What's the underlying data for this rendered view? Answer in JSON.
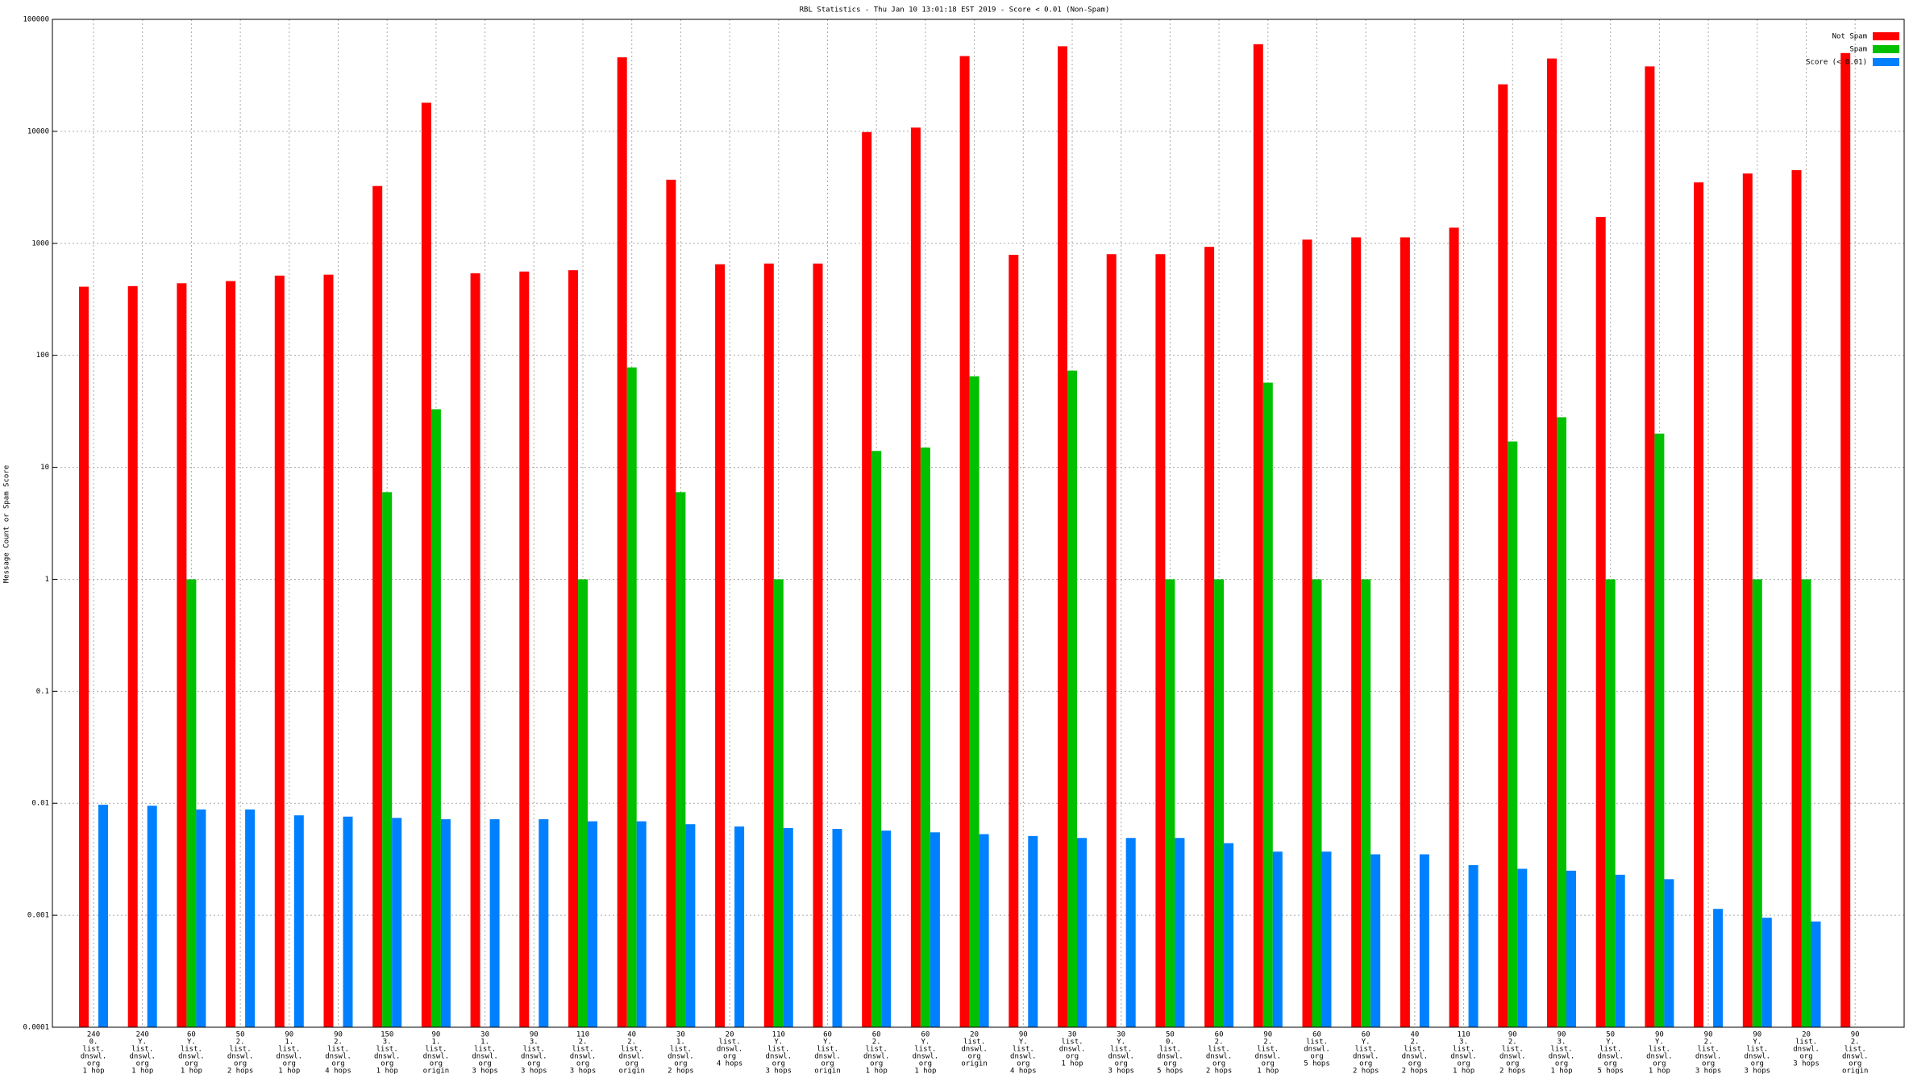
{
  "chart_data": {
    "type": "bar",
    "log_scale": true,
    "grid": true,
    "legend_position": "top-right",
    "title": "RBL Statistics - Thu Jan 10 13:01:18 EST 2019 - Score < 0.01 (Non-Spam)",
    "y_label": "Message Count or Spam Score",
    "ylim": [
      0.0001,
      100000
    ],
    "yticks": [
      0.0001,
      0.001,
      0.01,
      0.1,
      1,
      10,
      100,
      1000,
      10000,
      100000
    ],
    "categories": [
      [
        "240",
        "0.",
        "list.",
        "dnswl.",
        "org",
        "1 hop"
      ],
      [
        "240",
        "Y.",
        "list.",
        "dnswl.",
        "org",
        "1 hop"
      ],
      [
        "60",
        "Y.",
        "list.",
        "dnswl.",
        "org",
        "1 hop"
      ],
      [
        "50",
        "2.",
        "list.",
        "dnswl.",
        "org",
        "2 hops"
      ],
      [
        "90",
        "1.",
        "list.",
        "dnswl.",
        "org",
        "1 hop"
      ],
      [
        "90",
        "2.",
        "list.",
        "dnswl.",
        "org",
        "4 hops"
      ],
      [
        "150",
        "3.",
        "list.",
        "dnswl.",
        "org",
        "1 hop"
      ],
      [
        "90",
        "1.",
        "list.",
        "dnswl.",
        "org",
        "origin"
      ],
      [
        "30",
        "1.",
        "list.",
        "dnswl.",
        "org",
        "3 hops"
      ],
      [
        "90",
        "3.",
        "list.",
        "dnswl.",
        "org",
        "3 hops"
      ],
      [
        "110",
        "2.",
        "list.",
        "dnswl.",
        "org",
        "3 hops"
      ],
      [
        "40",
        "2.",
        "list.",
        "dnswl.",
        "org",
        "origin"
      ],
      [
        "30",
        "1.",
        "list.",
        "dnswl.",
        "org",
        "2 hops"
      ],
      [
        "20",
        "list.",
        "dnswl.",
        "org",
        "4 hops"
      ],
      [
        "110",
        "Y.",
        "list.",
        "dnswl.",
        "org",
        "3 hops"
      ],
      [
        "60",
        "Y.",
        "list.",
        "dnswl.",
        "org",
        "origin"
      ],
      [
        "60",
        "2.",
        "list.",
        "dnswl.",
        "org",
        "1 hop"
      ],
      [
        "60",
        "Y.",
        "list.",
        "dnswl.",
        "org",
        "1 hop"
      ],
      [
        "20",
        "list.",
        "dnswl.",
        "org",
        "origin"
      ],
      [
        "90",
        "Y.",
        "list.",
        "dnswl.",
        "org",
        "4 hops"
      ],
      [
        "30",
        "list.",
        "dnswl.",
        "org",
        "1 hop"
      ],
      [
        "30",
        "Y.",
        "list.",
        "dnswl.",
        "org",
        "3 hops"
      ],
      [
        "50",
        "0.",
        "list.",
        "dnswl.",
        "org",
        "5 hops"
      ],
      [
        "60",
        "2.",
        "list.",
        "dnswl.",
        "org",
        "2 hops"
      ],
      [
        "90",
        "2.",
        "list.",
        "dnswl.",
        "org",
        "1 hop"
      ],
      [
        "60",
        "list.",
        "dnswl.",
        "org",
        "5 hops"
      ],
      [
        "60",
        "Y.",
        "list.",
        "dnswl.",
        "org",
        "2 hops"
      ],
      [
        "40",
        "2.",
        "list.",
        "dnswl.",
        "org",
        "2 hops"
      ],
      [
        "110",
        "3.",
        "list.",
        "dnswl.",
        "org",
        "1 hop"
      ],
      [
        "90",
        "2.",
        "list.",
        "dnswl.",
        "org",
        "2 hops"
      ],
      [
        "90",
        "3.",
        "list.",
        "dnswl.",
        "org",
        "1 hop"
      ],
      [
        "50",
        "Y.",
        "list.",
        "dnswl.",
        "org",
        "5 hops"
      ],
      [
        "90",
        "Y.",
        "list.",
        "dnswl.",
        "org",
        "1 hop"
      ],
      [
        "90",
        "2.",
        "list.",
        "dnswl.",
        "org",
        "3 hops"
      ],
      [
        "90",
        "Y.",
        "list.",
        "dnswl.",
        "org",
        "3 hops"
      ],
      [
        "20",
        "list.",
        "dnswl.",
        "org",
        "3 hops"
      ],
      [
        "90",
        "2.",
        "list.",
        "dnswl.",
        "org",
        "origin"
      ]
    ],
    "series": [
      {
        "name": "Not Spam",
        "color": "#ff0000",
        "values": [
          410,
          415,
          440,
          460,
          515,
          525,
          3250,
          18000,
          540,
          560,
          575,
          45800,
          3700,
          650,
          660,
          660,
          9850,
          10800,
          47000,
          790,
          57500,
          800,
          800,
          930,
          60000,
          1080,
          1130,
          1130,
          1380,
          26300,
          44700,
          1720,
          38000,
          3500,
          4200,
          4500,
          50000
        ]
      },
      {
        "name": "Spam",
        "color": "#00c000",
        "values": [
          null,
          null,
          1,
          null,
          null,
          null,
          6,
          33,
          null,
          null,
          1,
          78,
          6,
          null,
          1,
          null,
          14,
          15,
          65,
          null,
          73,
          null,
          1,
          1,
          57,
          1,
          1,
          null,
          null,
          17,
          28,
          1,
          20,
          null,
          1,
          1,
          null
        ]
      },
      {
        "name": "Score (< 0.01)",
        "color": "#0080ff",
        "values": [
          0.0097,
          0.0095,
          0.0088,
          0.0088,
          0.0078,
          0.0076,
          0.0074,
          0.0072,
          0.0072,
          0.0072,
          0.0069,
          0.0069,
          0.0065,
          0.0062,
          0.006,
          0.0059,
          0.0057,
          0.0055,
          0.0053,
          0.0051,
          0.0049,
          0.0049,
          0.0049,
          0.0044,
          0.0037,
          0.0037,
          0.0035,
          0.0035,
          0.0028,
          0.0026,
          0.0025,
          0.0023,
          0.0021,
          0.00114,
          0.00095,
          0.00088,
          null
        ]
      }
    ]
  }
}
